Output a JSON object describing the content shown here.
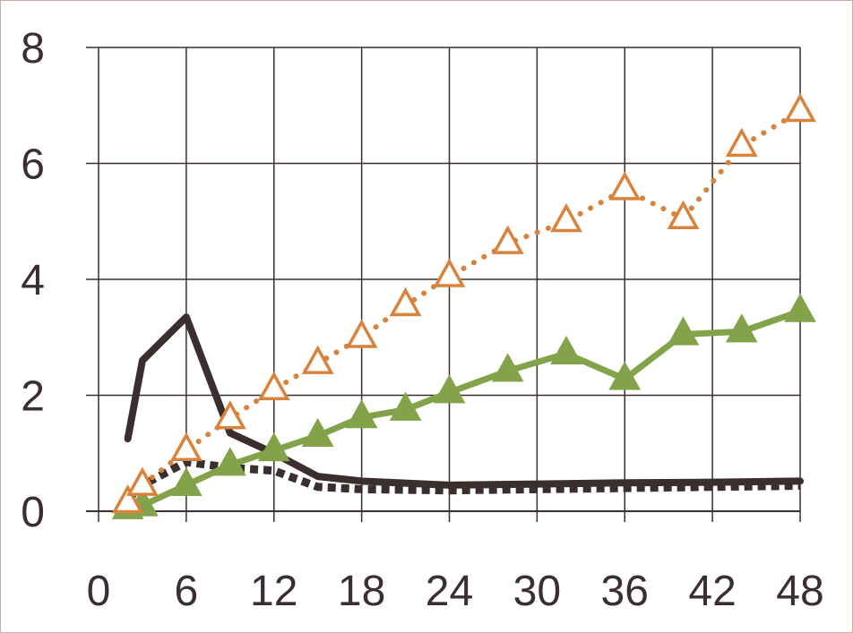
{
  "chart_data": {
    "type": "line",
    "title": "",
    "xlabel": "",
    "ylabel": "",
    "xlim": [
      0,
      48
    ],
    "ylim": [
      0,
      8
    ],
    "x_ticks": [
      "0",
      "6",
      "12",
      "18",
      "24",
      "30",
      "36",
      "42",
      "48"
    ],
    "y_ticks": [
      "0",
      "2",
      "4",
      "6",
      "8"
    ],
    "grid": true,
    "legend": "none",
    "series": [
      {
        "style": "solid-dark",
        "color": "#3a2e2e",
        "marker": "none",
        "x": [
          2,
          3,
          6,
          9,
          12,
          15,
          18,
          24,
          30,
          36,
          42,
          48
        ],
        "y": [
          1.25,
          2.6,
          3.35,
          1.35,
          1.0,
          0.6,
          0.52,
          0.45,
          0.47,
          0.49,
          0.5,
          0.52
        ]
      },
      {
        "style": "dotted-dark",
        "color": "#3a2e2e",
        "marker": "none",
        "x": [
          2,
          3,
          6,
          9,
          12,
          15,
          18,
          24,
          30,
          36,
          42,
          48
        ],
        "y": [
          0.2,
          0.45,
          0.85,
          0.75,
          0.7,
          0.42,
          0.38,
          0.36,
          0.38,
          0.4,
          0.42,
          0.44
        ]
      },
      {
        "style": "solid-green-filled-triangles",
        "color": "#83a34a",
        "marker": "triangle-filled",
        "x": [
          2,
          3,
          6,
          9,
          12,
          15,
          18,
          21,
          24,
          28,
          32,
          36,
          40,
          44,
          48
        ],
        "y": [
          0.05,
          0.1,
          0.45,
          0.8,
          1.05,
          1.3,
          1.62,
          1.75,
          2.05,
          2.42,
          2.72,
          2.28,
          3.05,
          3.1,
          3.45
        ]
      },
      {
        "style": "dotted-orange-open-triangles",
        "color": "#d9823b",
        "marker": "triangle-open",
        "x": [
          2,
          3,
          6,
          9,
          12,
          15,
          18,
          21,
          24,
          28,
          32,
          36,
          40,
          44,
          48
        ],
        "y": [
          0.15,
          0.45,
          1.05,
          1.6,
          2.1,
          2.55,
          3.0,
          3.55,
          4.05,
          4.62,
          5.0,
          5.55,
          5.05,
          6.3,
          6.9
        ]
      }
    ]
  }
}
